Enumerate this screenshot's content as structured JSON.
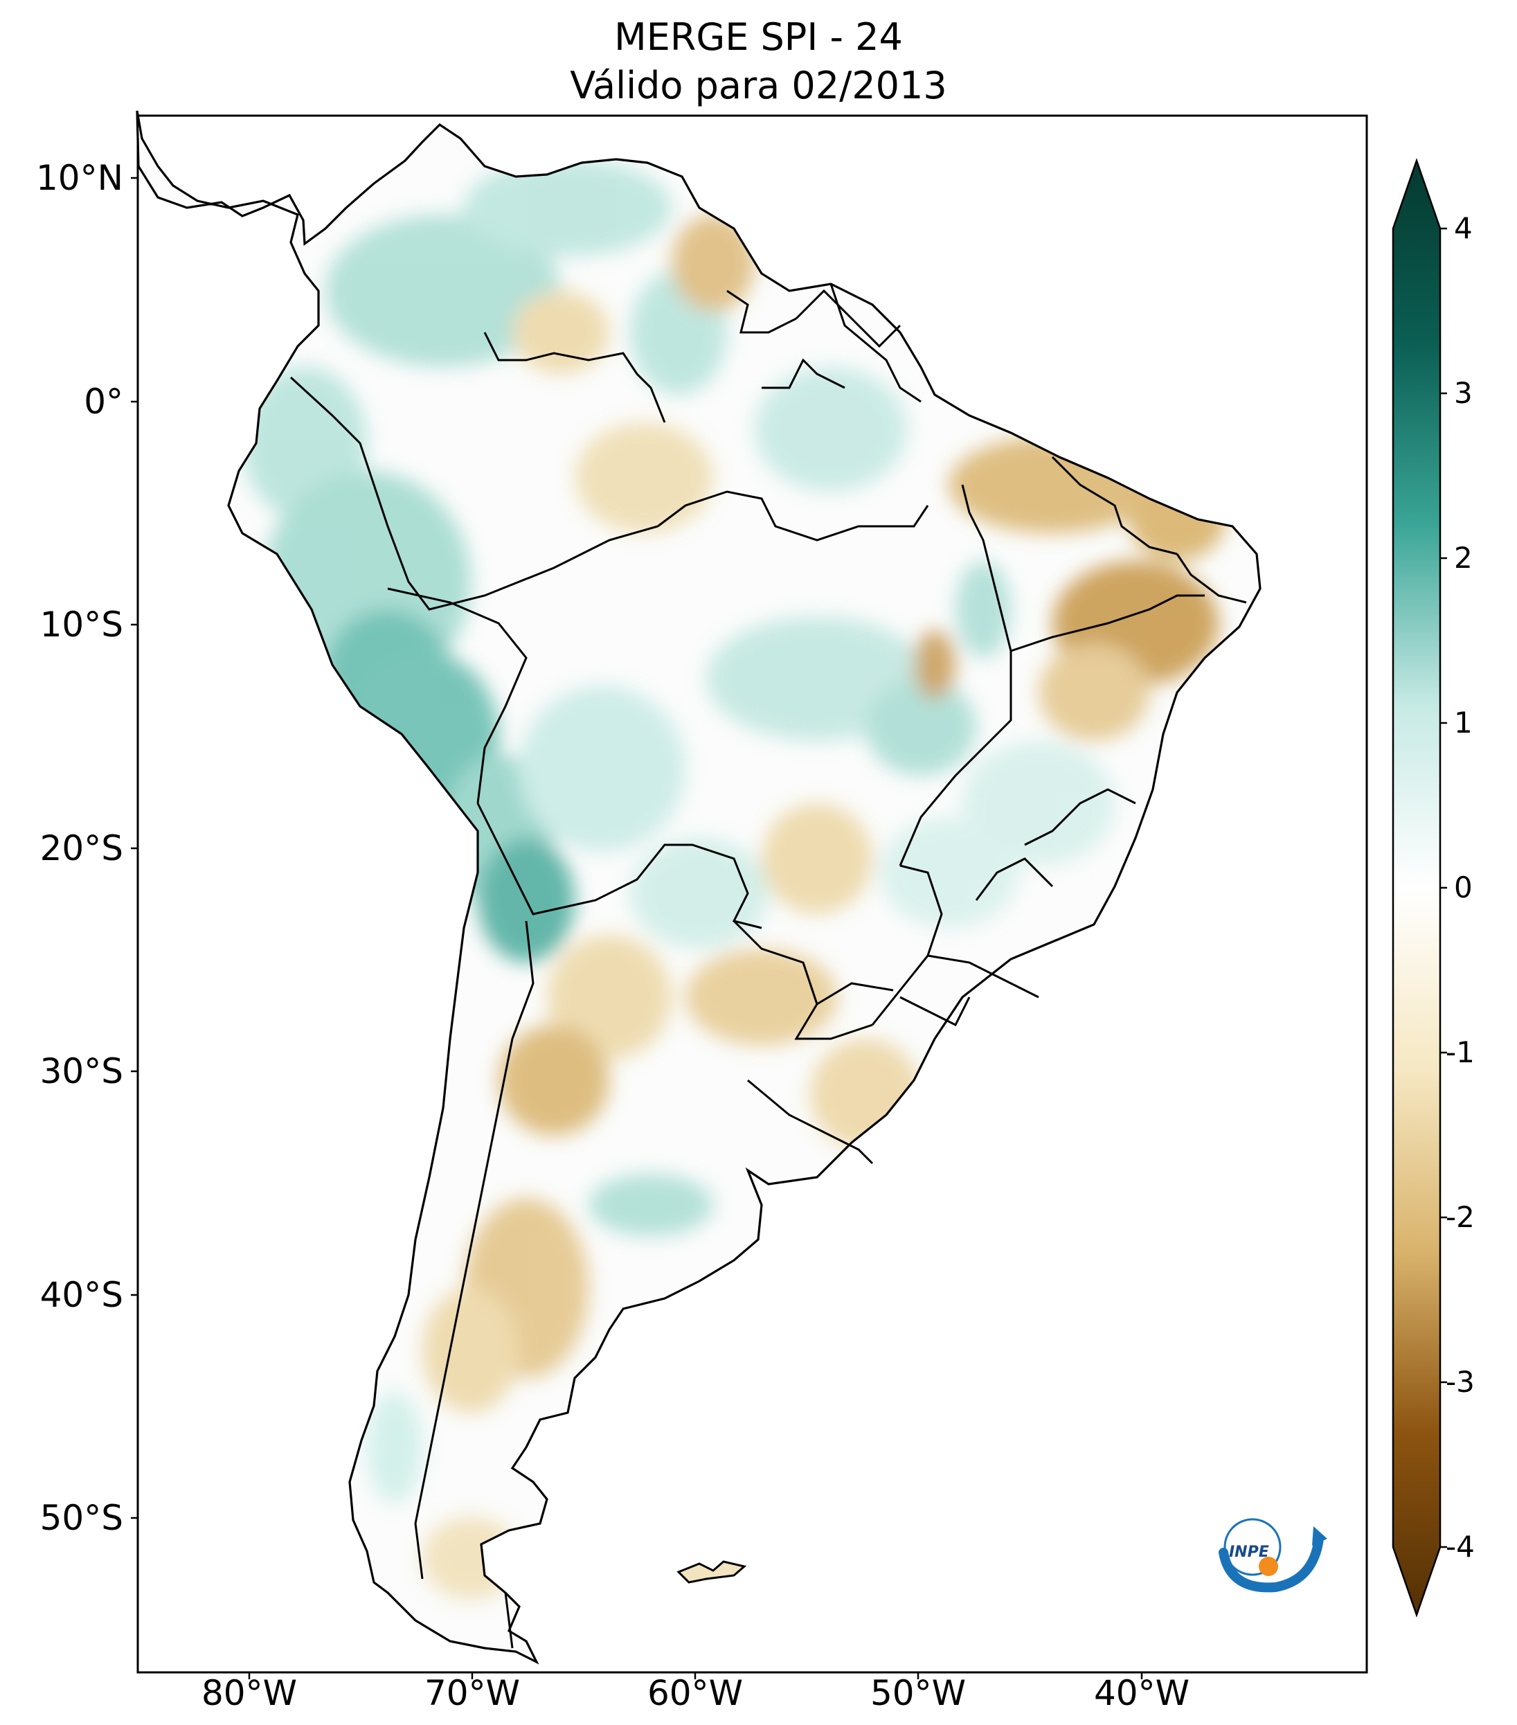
{
  "title": {
    "line1": "MERGE   SPI - 24",
    "line2": "Válido para 02/2013"
  },
  "axes": {
    "lat_labels": [
      "10°N",
      "0°",
      "10°S",
      "20°S",
      "30°S",
      "40°S",
      "50°S"
    ],
    "lon_labels": [
      "80°W",
      "70°W",
      "60°W",
      "50°W",
      "40°W"
    ],
    "lon_range": [
      -85,
      -30
    ],
    "lat_range": [
      -57,
      13
    ]
  },
  "colorbar": {
    "ticks": [
      "4",
      "3",
      "2",
      "1",
      "0",
      "-1",
      "-2",
      "-3",
      "-4"
    ],
    "range": [
      -4,
      4
    ],
    "extend": "both",
    "colors": {
      "wet_max": "#05392f",
      "wet_mid": "#3aa596",
      "wet_low": "#c7eae5",
      "neutral": "#ffffff",
      "dry_low": "#f6e8c3",
      "dry_mid": "#c69545",
      "dry_max": "#543005"
    }
  },
  "map": {
    "region": "South America",
    "colormap": "BrBG",
    "coastline_color": "#000000",
    "wet_anomalies": "teal",
    "dry_anomalies": "brown"
  },
  "logo": {
    "text": "INPE",
    "colors": {
      "arc": "#1a73b8",
      "sun": "#f28c1c"
    }
  }
}
